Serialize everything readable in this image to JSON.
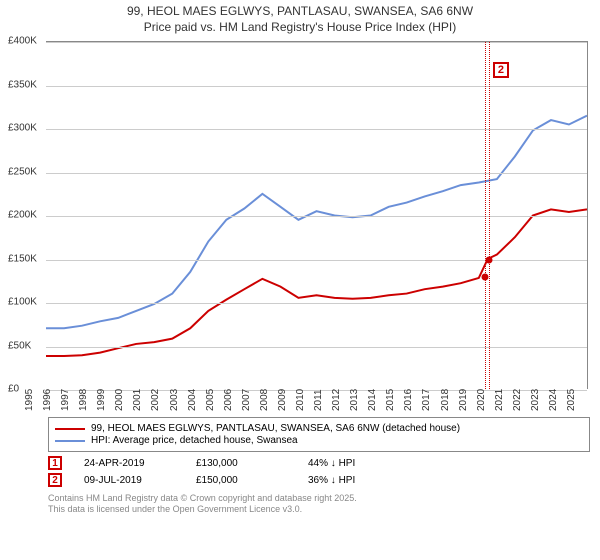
{
  "title": {
    "address": "99, HEOL MAES EGLWYS, PANTLASAU, SWANSEA, SA6 6NW",
    "subtitle": "Price paid vs. HM Land Registry's House Price Index (HPI)"
  },
  "chart": {
    "type": "line",
    "background_color": "#ffffff",
    "grid_color": "#cccccc",
    "axis_color": "#888888",
    "label_fontsize": 10,
    "title_fontsize": 12,
    "x": {
      "min": 1995,
      "max": 2025,
      "tick_step": 1
    },
    "y": {
      "min": 0,
      "max": 400000,
      "tick_step": 50000,
      "prefix": "£",
      "suffix_k": "K"
    },
    "series": [
      {
        "key": "property",
        "label": "99, HEOL MAES EGLWYS, PANTLASAU, SWANSEA, SA6 6NW (detached house)",
        "color": "#cc0000",
        "line_width": 2,
        "data": [
          [
            1995,
            38000
          ],
          [
            1996,
            38000
          ],
          [
            1997,
            39000
          ],
          [
            1998,
            42000
          ],
          [
            1999,
            47000
          ],
          [
            2000,
            52000
          ],
          [
            2001,
            54000
          ],
          [
            2002,
            58000
          ],
          [
            2003,
            70000
          ],
          [
            2004,
            90000
          ],
          [
            2005,
            103000
          ],
          [
            2006,
            115000
          ],
          [
            2007,
            127000
          ],
          [
            2008,
            118000
          ],
          [
            2009,
            105000
          ],
          [
            2010,
            108000
          ],
          [
            2011,
            105000
          ],
          [
            2012,
            104000
          ],
          [
            2013,
            105000
          ],
          [
            2014,
            108000
          ],
          [
            2015,
            110000
          ],
          [
            2016,
            115000
          ],
          [
            2017,
            118000
          ],
          [
            2018,
            122000
          ],
          [
            2019,
            128000
          ],
          [
            2019.5,
            150000
          ],
          [
            2020,
            155000
          ],
          [
            2021,
            175000
          ],
          [
            2022,
            200000
          ],
          [
            2023,
            207000
          ],
          [
            2024,
            204000
          ],
          [
            2025,
            207000
          ]
        ]
      },
      {
        "key": "hpi",
        "label": "HPI: Average price, detached house, Swansea",
        "color": "#6a8fd8",
        "line_width": 2,
        "data": [
          [
            1995,
            70000
          ],
          [
            1996,
            70000
          ],
          [
            1997,
            73000
          ],
          [
            1998,
            78000
          ],
          [
            1999,
            82000
          ],
          [
            2000,
            90000
          ],
          [
            2001,
            98000
          ],
          [
            2002,
            110000
          ],
          [
            2003,
            135000
          ],
          [
            2004,
            170000
          ],
          [
            2005,
            195000
          ],
          [
            2006,
            208000
          ],
          [
            2007,
            225000
          ],
          [
            2008,
            210000
          ],
          [
            2009,
            195000
          ],
          [
            2010,
            205000
          ],
          [
            2011,
            200000
          ],
          [
            2012,
            198000
          ],
          [
            2013,
            200000
          ],
          [
            2014,
            210000
          ],
          [
            2015,
            215000
          ],
          [
            2016,
            222000
          ],
          [
            2017,
            228000
          ],
          [
            2018,
            235000
          ],
          [
            2019,
            238000
          ],
          [
            2020,
            242000
          ],
          [
            2021,
            268000
          ],
          [
            2022,
            298000
          ],
          [
            2023,
            310000
          ],
          [
            2024,
            305000
          ],
          [
            2025,
            315000
          ]
        ]
      }
    ],
    "vertical_markers": [
      {
        "id": "1",
        "x": 2019.31,
        "color": "#cc0000"
      },
      {
        "id": "2",
        "x": 2019.52,
        "color": "#cc0000",
        "callout": true
      }
    ],
    "sale_points": [
      {
        "x": 2019.31,
        "y": 130000,
        "color": "#cc0000"
      },
      {
        "x": 2019.52,
        "y": 150000,
        "color": "#cc0000"
      }
    ]
  },
  "legend": {
    "items": [
      {
        "color": "#cc0000",
        "label_ref": "chart.series.0.label"
      },
      {
        "color": "#6a8fd8",
        "label_ref": "chart.series.1.label"
      }
    ]
  },
  "markers_table": {
    "rows": [
      {
        "id": "1",
        "color": "#cc0000",
        "date": "24-APR-2019",
        "price": "£130,000",
        "delta": "44% ↓ HPI"
      },
      {
        "id": "2",
        "color": "#cc0000",
        "date": "09-JUL-2019",
        "price": "£150,000",
        "delta": "36% ↓ HPI"
      }
    ]
  },
  "footer": {
    "line1": "Contains HM Land Registry data © Crown copyright and database right 2025.",
    "line2": "This data is licensed under the Open Government Licence v3.0."
  }
}
